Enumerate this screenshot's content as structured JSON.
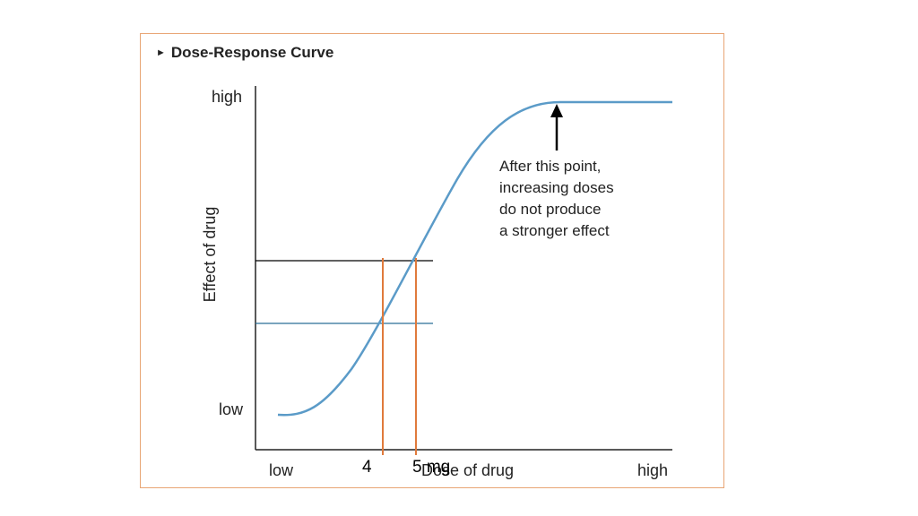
{
  "title": "Dose-Response Curve",
  "title_icon": "triangle-right-icon",
  "chart_data": {
    "type": "line",
    "y_axis": {
      "label": "Effect of drug",
      "tick_labels": [
        "low",
        "high"
      ]
    },
    "x_axis": {
      "label": "Dose of drug",
      "tick_labels": [
        "low",
        "high"
      ]
    },
    "curve": {
      "shape": "sigmoid",
      "color": "#5b9bc8"
    },
    "annotation": {
      "lines": [
        "After this point,",
        "increasing doses",
        "do not produce",
        "a stronger effect"
      ],
      "arrow_icon": "arrow-up-icon"
    },
    "dose_markers": [
      {
        "label": "4",
        "color": "#e07a3c"
      },
      {
        "label": "5 mg",
        "color": "#e07a3c"
      }
    ],
    "response_lines": [
      {
        "color": "#000000"
      },
      {
        "color": "#2a6f97"
      }
    ]
  },
  "colors": {
    "frame": "#e8a574",
    "curve": "#5b9bc8",
    "marker": "#e07a3c"
  }
}
